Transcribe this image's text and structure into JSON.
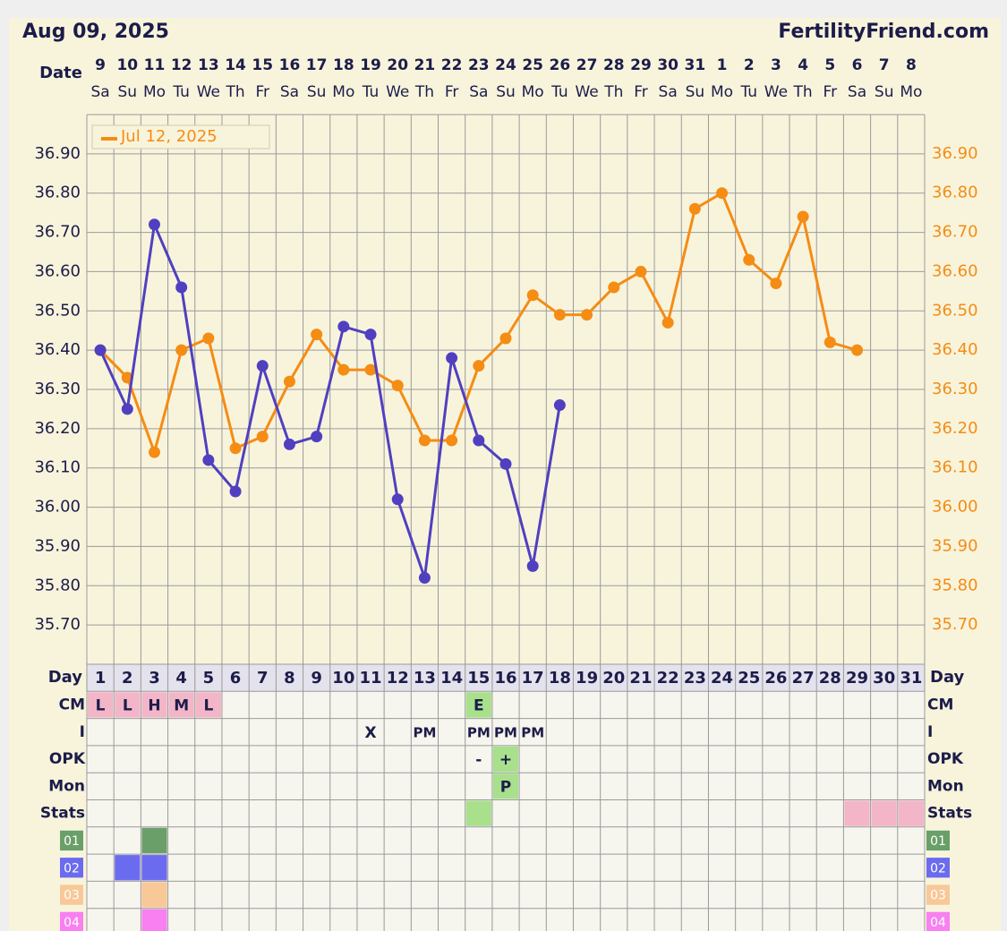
{
  "header": {
    "title": "Aug 09, 2025",
    "site": "FertilityFriend.com",
    "date_label": "Date",
    "dates": [
      9,
      10,
      11,
      12,
      13,
      14,
      15,
      16,
      17,
      18,
      19,
      20,
      21,
      22,
      23,
      24,
      25,
      26,
      27,
      28,
      29,
      30,
      31,
      1,
      2,
      3,
      4,
      5,
      6,
      7,
      8
    ],
    "weekdays": [
      "Sa",
      "Su",
      "Mo",
      "Tu",
      "We",
      "Th",
      "Fr",
      "Sa",
      "Su",
      "Mo",
      "Tu",
      "We",
      "Th",
      "Fr",
      "Sa",
      "Su",
      "Mo",
      "Tu",
      "We",
      "Th",
      "Fr",
      "Sa",
      "Su",
      "Mo",
      "Tu",
      "We",
      "Th",
      "Fr",
      "Sa",
      "Su",
      "Mo"
    ]
  },
  "chart_data": {
    "type": "line",
    "x": [
      1,
      2,
      3,
      4,
      5,
      6,
      7,
      8,
      9,
      10,
      11,
      12,
      13,
      14,
      15,
      16,
      17,
      18,
      19,
      20,
      21,
      22,
      23,
      24,
      25,
      26,
      27,
      28,
      29,
      30,
      31
    ],
    "xlim": [
      0.5,
      31.5
    ],
    "ylim": [
      35.6,
      37.0
    ],
    "y2lim": [
      35.6,
      37.0
    ],
    "yticks": [
      {
        "value": 35.7,
        "label": "35.70"
      },
      {
        "value": 35.8,
        "label": "35.80"
      },
      {
        "value": 35.9,
        "label": "35.90"
      },
      {
        "value": 36.0,
        "label": "36.00"
      },
      {
        "value": 36.1,
        "label": "36.10"
      },
      {
        "value": 36.2,
        "label": "36.20"
      },
      {
        "value": 36.3,
        "label": "36.30"
      },
      {
        "value": 36.4,
        "label": "36.40"
      },
      {
        "value": 36.5,
        "label": "36.50"
      },
      {
        "value": 36.6,
        "label": "36.60"
      },
      {
        "value": 36.7,
        "label": "36.70"
      },
      {
        "value": 36.8,
        "label": "36.80"
      },
      {
        "value": 36.9,
        "label": "36.90"
      }
    ],
    "y2ticks": [
      {
        "value": 35.7,
        "label": "35.70"
      },
      {
        "value": 35.8,
        "label": "35.80"
      },
      {
        "value": 35.9,
        "label": "35.90"
      },
      {
        "value": 36.0,
        "label": "36.00"
      },
      {
        "value": 36.1,
        "label": "36.10"
      },
      {
        "value": 36.2,
        "label": "36.20"
      },
      {
        "value": 36.3,
        "label": "36.30"
      },
      {
        "value": 36.4,
        "label": "36.40"
      },
      {
        "value": 36.5,
        "label": "36.50"
      },
      {
        "value": 36.6,
        "label": "36.60"
      },
      {
        "value": 36.7,
        "label": "36.70"
      },
      {
        "value": 36.8,
        "label": "36.80"
      },
      {
        "value": 36.9,
        "label": "36.90"
      }
    ],
    "grid": true,
    "legend": "top-left",
    "series": [
      {
        "color": "#5040c0",
        "values": [
          36.4,
          36.25,
          36.72,
          36.56,
          36.12,
          36.04,
          36.36,
          36.16,
          36.18,
          36.46,
          36.44,
          36.02,
          35.82,
          36.38,
          36.17,
          36.11,
          35.85,
          36.26,
          null,
          null,
          null,
          null,
          null,
          null,
          null,
          null,
          null,
          null,
          null,
          null,
          null
        ]
      },
      {
        "name": "Jul 12, 2025",
        "color": "#f58c14",
        "axis": "y2",
        "values": [
          36.4,
          36.33,
          36.14,
          36.4,
          36.43,
          36.15,
          36.18,
          36.32,
          36.44,
          36.35,
          36.35,
          36.31,
          36.17,
          36.17,
          36.36,
          36.43,
          36.54,
          36.49,
          36.49,
          36.56,
          36.6,
          36.47,
          36.76,
          36.8,
          36.63,
          36.57,
          36.74,
          36.42,
          36.4,
          null,
          null
        ]
      }
    ]
  },
  "table": {
    "day_label": "Day",
    "rows": [
      {
        "label": "CM",
        "cells": [
          "L",
          "L",
          "H",
          "M",
          "L",
          null,
          null,
          null,
          null,
          null,
          null,
          null,
          null,
          null,
          "E",
          null,
          null,
          null,
          null,
          null,
          null,
          null,
          null,
          null,
          null,
          null,
          null,
          null,
          null,
          null,
          null
        ],
        "fills": [
          "#f2b6c8",
          "#f2b6c8",
          "#f2b6c8",
          "#f2b6c8",
          "#f2b6c8",
          null,
          null,
          null,
          null,
          null,
          null,
          null,
          null,
          null,
          "#a8e08c",
          null,
          null,
          null,
          null,
          null,
          null,
          null,
          null,
          null,
          null,
          null,
          null,
          null,
          null,
          null,
          null
        ]
      },
      {
        "label": "I",
        "cells": [
          null,
          null,
          null,
          null,
          null,
          null,
          null,
          null,
          null,
          null,
          "X",
          null,
          "PM",
          null,
          "PM",
          "PM",
          "PM",
          null,
          null,
          null,
          null,
          null,
          null,
          null,
          null,
          null,
          null,
          null,
          null,
          null,
          null
        ]
      },
      {
        "label": "OPK",
        "cells": [
          null,
          null,
          null,
          null,
          null,
          null,
          null,
          null,
          null,
          null,
          null,
          null,
          null,
          null,
          "-",
          "+",
          null,
          null,
          null,
          null,
          null,
          null,
          null,
          null,
          null,
          null,
          null,
          null,
          null,
          null,
          null
        ],
        "fills": [
          null,
          null,
          null,
          null,
          null,
          null,
          null,
          null,
          null,
          null,
          null,
          null,
          null,
          null,
          null,
          "#a8e08c",
          null,
          null,
          null,
          null,
          null,
          null,
          null,
          null,
          null,
          null,
          null,
          null,
          null,
          null,
          null
        ]
      },
      {
        "label": "Mon",
        "cells": [
          null,
          null,
          null,
          null,
          null,
          null,
          null,
          null,
          null,
          null,
          null,
          null,
          null,
          null,
          null,
          "P",
          null,
          null,
          null,
          null,
          null,
          null,
          null,
          null,
          null,
          null,
          null,
          null,
          null,
          null,
          null
        ],
        "fills": [
          null,
          null,
          null,
          null,
          null,
          null,
          null,
          null,
          null,
          null,
          null,
          null,
          null,
          null,
          null,
          "#a8e08c",
          null,
          null,
          null,
          null,
          null,
          null,
          null,
          null,
          null,
          null,
          null,
          null,
          null,
          null,
          null
        ]
      },
      {
        "label": "Stats",
        "fills": [
          null,
          null,
          null,
          null,
          null,
          null,
          null,
          null,
          null,
          null,
          null,
          null,
          null,
          null,
          "#a8e08c",
          null,
          null,
          null,
          null,
          null,
          null,
          null,
          null,
          null,
          null,
          null,
          null,
          null,
          "#f2b6c8",
          "#f2b6c8",
          "#f2b6c8"
        ]
      }
    ],
    "codes": [
      {
        "label": "01",
        "color": "#6a9f6a",
        "fills": [
          null,
          null,
          "#6a9f6a",
          null,
          null,
          null,
          null,
          null,
          null,
          null,
          null,
          null,
          null,
          null,
          null,
          null,
          null,
          null,
          null,
          null,
          null,
          null,
          null,
          null,
          null,
          null,
          null,
          null,
          null,
          null,
          null
        ]
      },
      {
        "label": "02",
        "color": "#6b6bf0",
        "fills": [
          null,
          "#6b6bf0",
          "#6b6bf0",
          null,
          null,
          null,
          null,
          null,
          null,
          null,
          null,
          null,
          null,
          null,
          null,
          null,
          null,
          null,
          null,
          null,
          null,
          null,
          null,
          null,
          null,
          null,
          null,
          null,
          null,
          null,
          null
        ]
      },
      {
        "label": "03",
        "color": "#f8c898",
        "fills": [
          null,
          null,
          "#f8c898",
          null,
          null,
          null,
          null,
          null,
          null,
          null,
          null,
          null,
          null,
          null,
          null,
          null,
          null,
          null,
          null,
          null,
          null,
          null,
          null,
          null,
          null,
          null,
          null,
          null,
          null,
          null,
          null
        ]
      },
      {
        "label": "04",
        "color": "#f880f0",
        "fills": [
          null,
          null,
          "#f880f0",
          null,
          null,
          null,
          null,
          null,
          null,
          null,
          null,
          null,
          null,
          null,
          null,
          null,
          null,
          null,
          null,
          null,
          null,
          null,
          null,
          null,
          null,
          null,
          null,
          null,
          null,
          null,
          null
        ]
      }
    ]
  }
}
